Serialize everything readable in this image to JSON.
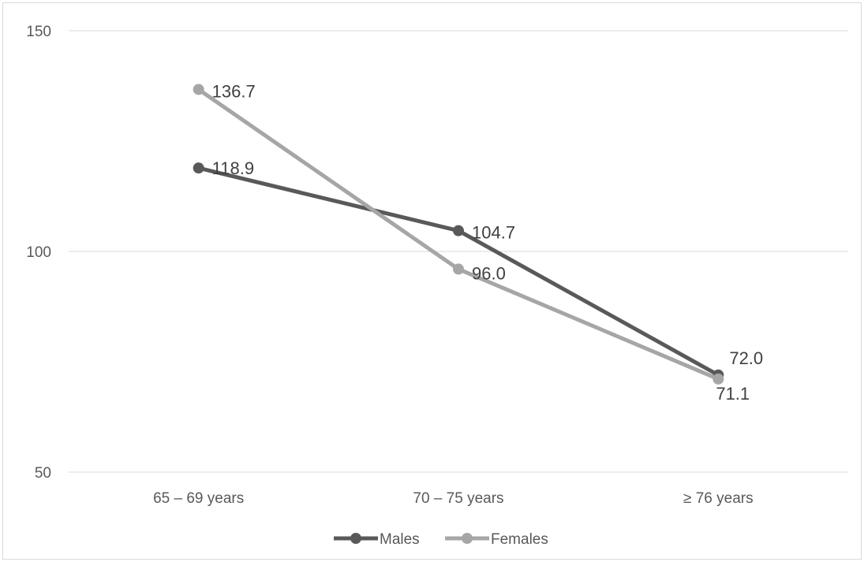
{
  "chart_data": {
    "type": "line",
    "title": "",
    "xlabel": "",
    "ylabel": "",
    "categories": [
      "65 – 69 years",
      "70 – 75 years",
      "≥ 76 years"
    ],
    "ylim": [
      50,
      150
    ],
    "yticks": [
      50,
      100,
      150
    ],
    "grid": true,
    "legend_position": "bottom",
    "series": [
      {
        "name": "Males",
        "values": [
          118.9,
          104.7,
          72.0
        ],
        "labels": [
          "118.9",
          "104.7",
          "72.0"
        ],
        "color": "#595959"
      },
      {
        "name": "Females",
        "values": [
          136.7,
          96.0,
          71.1
        ],
        "labels": [
          "136.7",
          "96.0",
          "71.1"
        ],
        "color": "#a6a6a6"
      }
    ]
  }
}
